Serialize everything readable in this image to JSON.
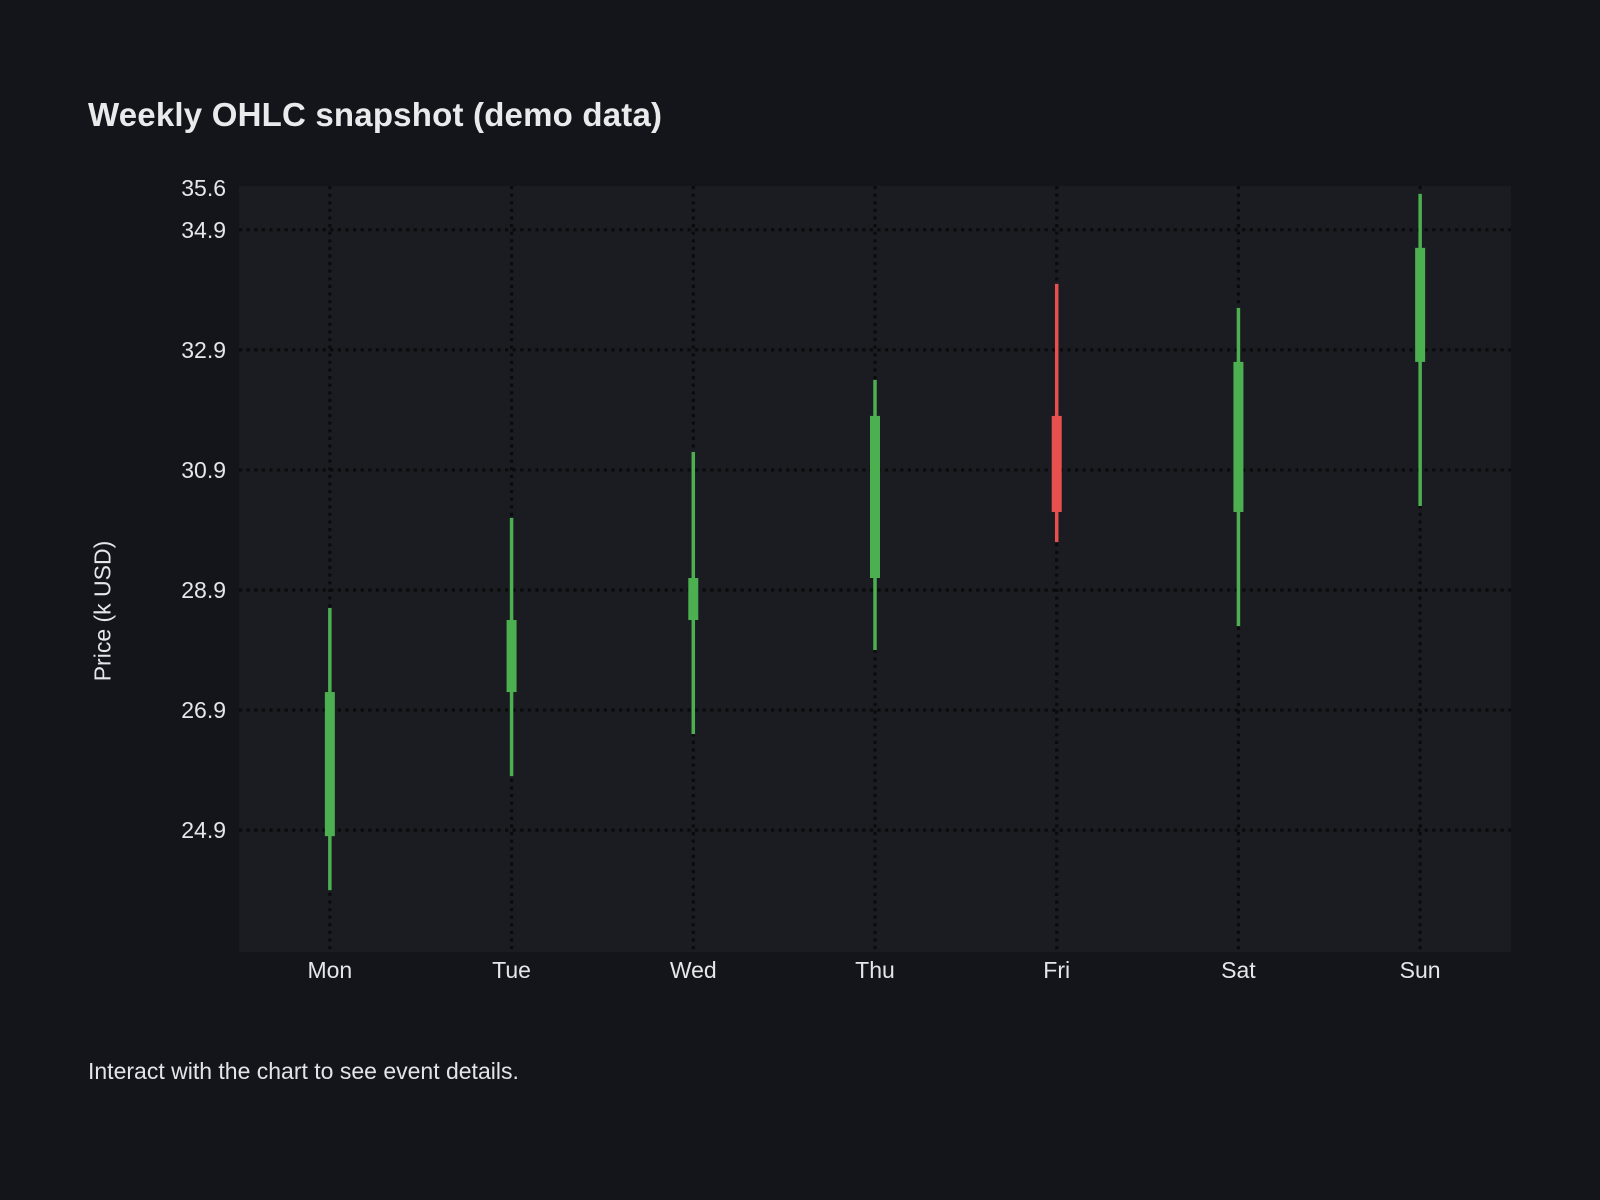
{
  "page": {
    "title": "Weekly OHLC snapshot (demo data)",
    "footer_hint": "Interact with the chart to see event details."
  },
  "chart_data": {
    "type": "candlestick",
    "title": "Weekly OHLC snapshot (demo data)",
    "xlabel": "",
    "ylabel": "Price (k USD)",
    "categories": [
      "Mon",
      "Tue",
      "Wed",
      "Thu",
      "Fri",
      "Sat",
      "Sun"
    ],
    "series": [
      {
        "name": "Weekly OHLC",
        "points": [
          {
            "x": "Mon",
            "open": 24.8,
            "high": 28.6,
            "low": 23.9,
            "close": 27.2,
            "direction": "up"
          },
          {
            "x": "Tue",
            "open": 27.2,
            "high": 30.1,
            "low": 25.8,
            "close": 28.4,
            "direction": "up"
          },
          {
            "x": "Wed",
            "open": 28.4,
            "high": 31.2,
            "low": 26.5,
            "close": 29.1,
            "direction": "up"
          },
          {
            "x": "Thu",
            "open": 29.1,
            "high": 32.4,
            "low": 27.9,
            "close": 31.8,
            "direction": "up"
          },
          {
            "x": "Fri",
            "open": 31.8,
            "high": 34.0,
            "low": 29.7,
            "close": 30.2,
            "direction": "down"
          },
          {
            "x": "Sat",
            "open": 30.2,
            "high": 33.6,
            "low": 28.3,
            "close": 32.7,
            "direction": "up"
          },
          {
            "x": "Sun",
            "open": 32.7,
            "high": 35.5,
            "low": 30.3,
            "close": 34.6,
            "direction": "up"
          }
        ]
      }
    ],
    "ylim": [
      22.87,
      35.63
    ],
    "y_ticks": [
      {
        "value": 35.6,
        "label": "35.6",
        "grid": false
      },
      {
        "value": 34.9,
        "label": "34.9",
        "grid": true
      },
      {
        "value": 32.9,
        "label": "32.9",
        "grid": true
      },
      {
        "value": 30.9,
        "label": "30.9",
        "grid": true
      },
      {
        "value": 28.9,
        "label": "28.9",
        "grid": true
      },
      {
        "value": 26.9,
        "label": "26.9",
        "grid": true
      },
      {
        "value": 24.9,
        "label": "24.9",
        "grid": true
      }
    ],
    "grid": "dotted",
    "legend": "none",
    "increasing_color": "#4caf50",
    "decreasing_color": "#e8504e"
  },
  "colors": {
    "background": "#13151a",
    "plot_background": "#1a1c21",
    "grid_dot": "#0a0b0d",
    "text": "#e4e6ea",
    "up": "#4caf50",
    "down": "#e8504e"
  }
}
